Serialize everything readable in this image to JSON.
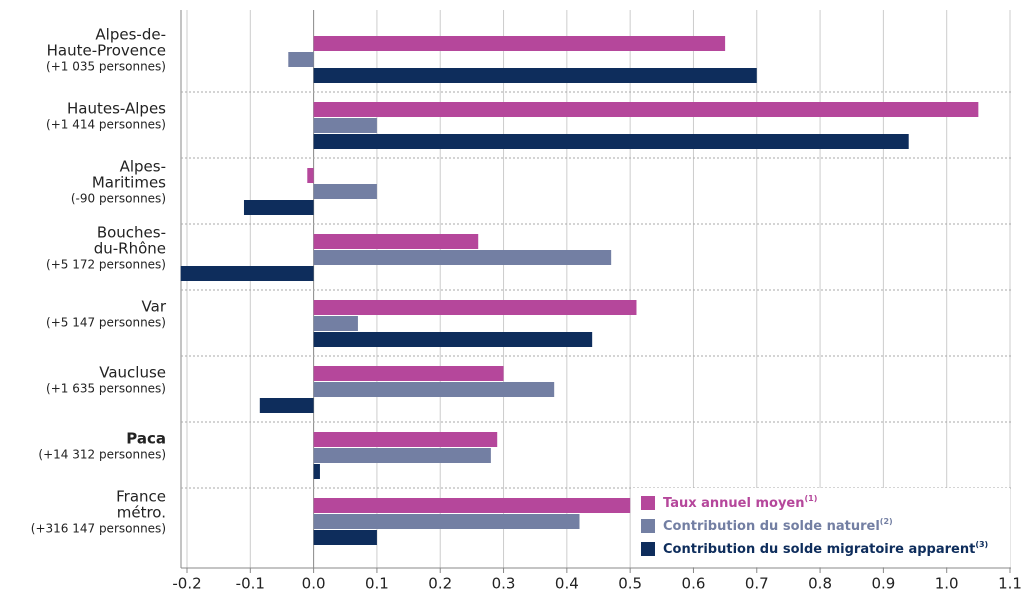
{
  "chart_data": {
    "type": "hbar",
    "categories": [
      [
        "Alpes-de-",
        "Haute-Provence"
      ],
      [
        "Hautes-Alpes"
      ],
      [
        "Alpes-",
        "Maritimes"
      ],
      [
        "Bouches-",
        "du-Rhône"
      ],
      [
        "Var"
      ],
      [
        "Vaucluse"
      ],
      [
        "Paca"
      ],
      [
        "France",
        "métro."
      ]
    ],
    "category_notes": [
      "(+1 035 personnes)",
      "(+1 414 personnes)",
      "(-90 personnes)",
      "(+5 172 personnes)",
      "(+5 147 personnes)",
      "(+1 635 personnes)",
      "(+14 312 personnes)",
      "(+316 147 personnes)"
    ],
    "bold_category": "Paca",
    "series": [
      {
        "name": "Taux annuel moyen",
        "note": "(1)",
        "color": "#b5479b",
        "values": [
          0.65,
          1.05,
          -0.01,
          0.26,
          0.51,
          0.3,
          0.29,
          0.5
        ]
      },
      {
        "name": "Contribution du solde naturel",
        "note": "(2)",
        "color": "#737fa3",
        "values": [
          -0.04,
          0.1,
          0.1,
          0.47,
          0.07,
          0.38,
          0.28,
          0.42
        ]
      },
      {
        "name": "Contribution du solde migratoire apparent",
        "note": "(3)",
        "color": "#0e2d5c",
        "values": [
          0.7,
          0.94,
          -0.11,
          -0.21,
          0.44,
          -0.085,
          0.01,
          0.1
        ]
      }
    ],
    "xlim": [
      -0.22,
      1.1
    ],
    "xticks": [
      -0.2,
      -0.1,
      {
        "value": 0,
        "label": "0.0"
      },
      0.1,
      0.2,
      0.3,
      0.4,
      0.5,
      0.6,
      0.7,
      0.8,
      0.9,
      {
        "value": 1,
        "label": "1.0"
      },
      1.1
    ],
    "grid": true
  }
}
